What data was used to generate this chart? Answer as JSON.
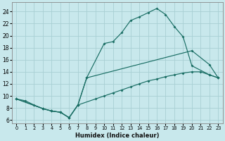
{
  "xlabel": "Humidex (Indice chaleur)",
  "bg_color": "#c8e8ec",
  "grid_color": "#a8cfd4",
  "line_color": "#1a6e64",
  "xlim": [
    -0.5,
    23.5
  ],
  "ylim": [
    5.5,
    25.5
  ],
  "xticks": [
    0,
    1,
    2,
    3,
    4,
    5,
    6,
    7,
    8,
    9,
    10,
    11,
    12,
    13,
    14,
    15,
    16,
    17,
    18,
    19,
    20,
    21,
    22,
    23
  ],
  "yticks": [
    6,
    8,
    10,
    12,
    14,
    16,
    18,
    20,
    22,
    24
  ],
  "line_upper_x": [
    0,
    1,
    2,
    3,
    4,
    5,
    6,
    7,
    8,
    10,
    11,
    12,
    13,
    14,
    15,
    16,
    17,
    18,
    19,
    20,
    22,
    23
  ],
  "line_upper_y": [
    9.5,
    9.2,
    8.5,
    7.9,
    7.5,
    7.3,
    6.4,
    8.5,
    13.0,
    18.7,
    19.0,
    20.5,
    22.5,
    23.1,
    23.8,
    24.5,
    23.5,
    21.5,
    19.8,
    15.0,
    13.5,
    13.0
  ],
  "line_mid_x": [
    0,
    3,
    4,
    5,
    6,
    7,
    8,
    20,
    22,
    23
  ],
  "line_mid_y": [
    9.5,
    7.9,
    7.5,
    7.3,
    6.4,
    8.5,
    13.0,
    17.5,
    15.2,
    13.0
  ],
  "line_low_x": [
    0,
    3,
    4,
    5,
    6,
    7,
    9,
    10,
    11,
    12,
    13,
    14,
    15,
    16,
    17,
    18,
    19,
    20,
    21,
    22,
    23
  ],
  "line_low_y": [
    9.5,
    7.9,
    7.5,
    7.3,
    6.4,
    8.5,
    9.5,
    10.0,
    10.5,
    11.0,
    11.5,
    12.0,
    12.5,
    12.8,
    13.2,
    13.5,
    13.8,
    14.0,
    14.0,
    13.5,
    13.0
  ]
}
